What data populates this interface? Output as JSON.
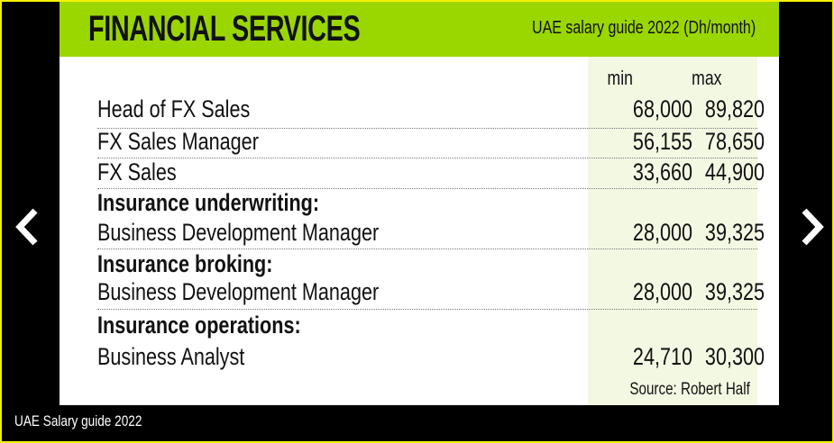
{
  "header": {
    "title": "FINANCIAL SERVICES",
    "subtitle": "UAE salary guide 2022 (Dh/month)"
  },
  "columns": {
    "min": "min",
    "max": "max"
  },
  "rows": [
    {
      "category": "",
      "role": "Head of FX Sales",
      "min": "68,000",
      "max": "89,820"
    },
    {
      "category": "",
      "role": "FX Sales Manager",
      "min": "56,155",
      "max": "78,650"
    },
    {
      "category": "",
      "role": "FX Sales",
      "min": "33,660",
      "max": "44,900"
    },
    {
      "category": "Insurance underwriting:",
      "role": "Business Development Manager",
      "min": "28,000",
      "max": "39,325"
    },
    {
      "category": "Insurance broking:",
      "role": "Business Development Manager",
      "min": "28,000",
      "max": "39,325"
    },
    {
      "category": "Insurance operations:",
      "role": "Business Analyst",
      "min": "24,710",
      "max": "30,300"
    }
  ],
  "source": "Source: Robert Half",
  "caption": "UAE Salary guide 2022",
  "nav": {
    "prev_icon": "chevron-left-icon",
    "next_icon": "chevron-right-icon"
  },
  "colors": {
    "header": "#9ad600",
    "border": "#f5f000",
    "column_shade": "#f3f8e3"
  }
}
